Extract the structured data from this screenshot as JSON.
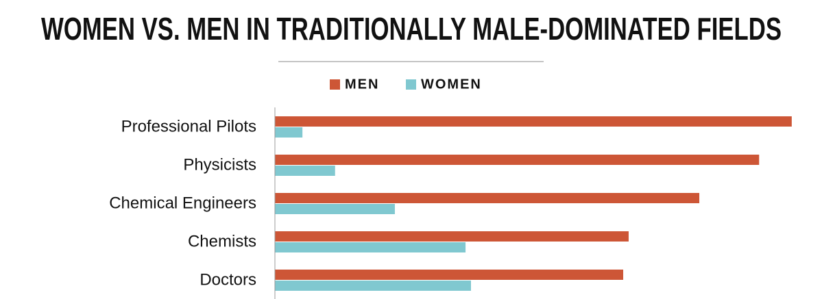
{
  "chart_data": {
    "type": "hbar",
    "title": "WOMEN VS. MEN IN TRADITIONALLY MALE-DOMINATED FIELDS",
    "categories": [
      "Professional Pilots",
      "Physicists",
      "Chemical Engineers",
      "Chemists",
      "Doctors"
    ],
    "series": [
      {
        "name": "MEN",
        "color": "#cd5636",
        "values": [
          95,
          89,
          78,
          65,
          64
        ]
      },
      {
        "name": "WOMEN",
        "color": "#80c8d0",
        "values": [
          5,
          11,
          22,
          35,
          36
        ]
      }
    ],
    "xlim": [
      0,
      100
    ],
    "legend": "top"
  }
}
